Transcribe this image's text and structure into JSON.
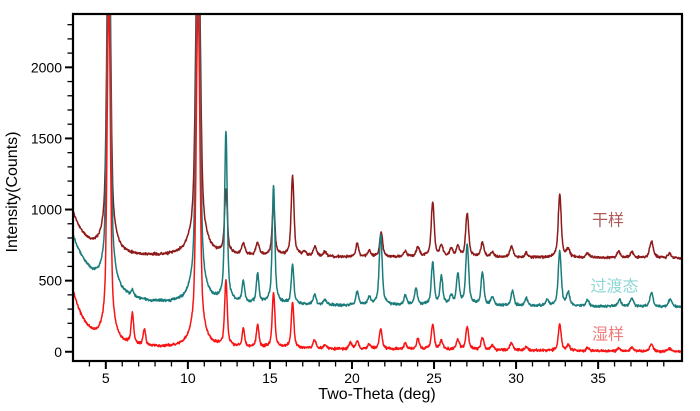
{
  "chart_data": {
    "type": "line",
    "title": "",
    "xlabel": "Two-Theta (deg)",
    "ylabel": "Intensity(Counts)",
    "xlim": [
      3,
      40.11
    ],
    "ylim": [
      -65,
      2375
    ],
    "x_major_ticks": [
      5,
      10,
      15,
      20,
      25,
      30,
      35
    ],
    "x_minor_tick_step": 1,
    "y_major_ticks": [
      0,
      500,
      1000,
      1500,
      2000
    ],
    "y_minor_tick_step": 100,
    "grid": false,
    "background": "#ffffff",
    "frame_color": "#000000",
    "legend_position": "inline-right",
    "series": [
      {
        "name": "dry-sample",
        "label": "干样",
        "label_color": "#ad5a5a",
        "label_pos_data": [
          35.6,
          930
        ],
        "color": "#8e1a1a",
        "baseline": {
          "start_value": 980,
          "level": 672,
          "slope": -0.4,
          "decay_amp": 310,
          "decay_tau": 0.85
        },
        "peaks_2theta_height_width": [
          [
            5.18,
            2600,
            0.1
          ],
          [
            10.62,
            2600,
            0.12
          ],
          [
            12.32,
            450,
            0.075
          ],
          [
            13.38,
            82,
            0.09
          ],
          [
            14.25,
            88,
            0.09
          ],
          [
            15.22,
            360,
            0.075
          ],
          [
            16.38,
            560,
            0.075
          ],
          [
            17.12,
            30,
            0.08
          ],
          [
            17.75,
            70,
            0.09
          ],
          [
            18.35,
            35,
            0.08
          ],
          [
            20.32,
            95,
            0.075
          ],
          [
            21.05,
            45,
            0.08
          ],
          [
            21.78,
            175,
            0.08
          ],
          [
            23.25,
            40,
            0.08
          ],
          [
            24.02,
            68,
            0.09
          ],
          [
            24.92,
            380,
            0.08
          ],
          [
            25.45,
            75,
            0.08
          ],
          [
            26.05,
            55,
            0.08
          ],
          [
            26.45,
            70,
            0.08
          ],
          [
            27.02,
            310,
            0.08
          ],
          [
            27.95,
            100,
            0.08
          ],
          [
            28.55,
            35,
            0.08
          ],
          [
            29.72,
            75,
            0.09
          ],
          [
            30.62,
            32,
            0.08
          ],
          [
            32.66,
            440,
            0.08
          ],
          [
            33.18,
            55,
            0.08
          ],
          [
            34.35,
            30,
            0.09
          ],
          [
            36.25,
            45,
            0.09
          ],
          [
            37.05,
            40,
            0.09
          ],
          [
            38.25,
            115,
            0.1
          ],
          [
            39.35,
            30,
            0.09
          ]
        ]
      },
      {
        "name": "transition-state",
        "label": "过渡态",
        "label_color": "#8fd6d6",
        "label_pos_data": [
          36.0,
          465
        ],
        "color": "#1b7d7b",
        "baseline": {
          "start_value": 805,
          "level": 336,
          "slope": -0.6,
          "decay_amp": 480,
          "decay_tau": 1.4
        },
        "peaks_2theta_height_width": [
          [
            5.18,
            2600,
            0.1
          ],
          [
            6.62,
            40,
            0.07
          ],
          [
            10.62,
            2600,
            0.11
          ],
          [
            12.32,
            1195,
            0.07
          ],
          [
            13.38,
            150,
            0.07
          ],
          [
            14.25,
            205,
            0.07
          ],
          [
            15.22,
            830,
            0.07
          ],
          [
            16.38,
            275,
            0.07
          ],
          [
            17.72,
            75,
            0.08
          ],
          [
            18.35,
            35,
            0.08
          ],
          [
            20.32,
            95,
            0.075
          ],
          [
            21.05,
            50,
            0.08
          ],
          [
            21.75,
            500,
            0.08
          ],
          [
            23.25,
            65,
            0.08
          ],
          [
            23.9,
            115,
            0.08
          ],
          [
            24.92,
            295,
            0.075
          ],
          [
            25.45,
            195,
            0.075
          ],
          [
            26.05,
            60,
            0.08
          ],
          [
            26.45,
            210,
            0.075
          ],
          [
            27.02,
            420,
            0.08
          ],
          [
            27.95,
            235,
            0.075
          ],
          [
            28.55,
            55,
            0.08
          ],
          [
            29.78,
            105,
            0.08
          ],
          [
            30.62,
            55,
            0.08
          ],
          [
            31.9,
            40,
            0.08
          ],
          [
            32.66,
            385,
            0.08
          ],
          [
            33.18,
            90,
            0.08
          ],
          [
            34.35,
            45,
            0.08
          ],
          [
            36.3,
            50,
            0.09
          ],
          [
            37.05,
            60,
            0.09
          ],
          [
            38.25,
            95,
            0.09
          ],
          [
            39.4,
            55,
            0.09
          ]
        ]
      },
      {
        "name": "wet-sample",
        "label": "湿样",
        "label_color": "#ef7b7b",
        "label_pos_data": [
          35.6,
          128
        ],
        "color": "#f81414",
        "baseline": {
          "start_value": 428,
          "level": 33,
          "slope": -0.9,
          "decay_amp": 395,
          "decay_tau": 0.85
        },
        "peaks_2theta_height_width": [
          [
            5.18,
            2450,
            0.09
          ],
          [
            6.62,
            215,
            0.07
          ],
          [
            7.35,
            110,
            0.07
          ],
          [
            10.62,
            2450,
            0.1
          ],
          [
            12.32,
            460,
            0.07
          ],
          [
            13.38,
            125,
            0.07
          ],
          [
            14.25,
            155,
            0.07
          ],
          [
            15.22,
            390,
            0.07
          ],
          [
            16.38,
            320,
            0.07
          ],
          [
            17.72,
            60,
            0.08
          ],
          [
            18.35,
            25,
            0.08
          ],
          [
            19.9,
            45,
            0.08
          ],
          [
            20.32,
            55,
            0.08
          ],
          [
            21.05,
            30,
            0.08
          ],
          [
            21.75,
            145,
            0.075
          ],
          [
            23.25,
            40,
            0.08
          ],
          [
            24.02,
            70,
            0.08
          ],
          [
            24.92,
            175,
            0.075
          ],
          [
            25.45,
            60,
            0.08
          ],
          [
            26.45,
            70,
            0.08
          ],
          [
            27.02,
            160,
            0.075
          ],
          [
            27.95,
            85,
            0.08
          ],
          [
            28.55,
            30,
            0.08
          ],
          [
            29.72,
            55,
            0.08
          ],
          [
            30.62,
            25,
            0.08
          ],
          [
            32.66,
            185,
            0.075
          ],
          [
            33.18,
            35,
            0.08
          ],
          [
            34.35,
            20,
            0.08
          ],
          [
            36.25,
            22,
            0.09
          ],
          [
            37.05,
            25,
            0.09
          ],
          [
            38.25,
            50,
            0.09
          ],
          [
            39.35,
            22,
            0.09
          ]
        ]
      }
    ]
  }
}
